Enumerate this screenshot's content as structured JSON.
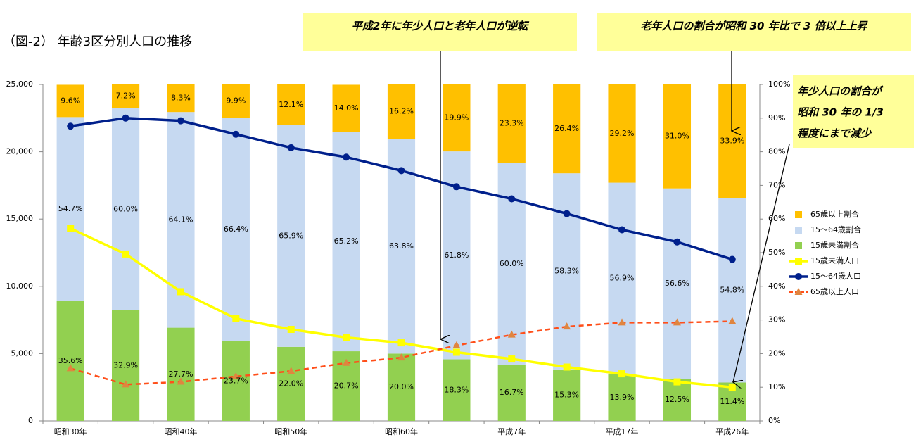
{
  "chart_data": {
    "type": "bar",
    "title": "（図-2） 年齢3区分別人口の推移",
    "stacked": true,
    "categories": [
      "昭和30年",
      null,
      "昭和40年",
      null,
      "昭和50年",
      null,
      "昭和60年",
      null,
      "平成7年",
      null,
      "平成17年",
      null,
      "平成26年"
    ],
    "series": [
      {
        "name": "65歳以上割合",
        "type": "bar",
        "axis": "y2",
        "color": "#ffc000",
        "values": [
          9.6,
          7.2,
          8.3,
          9.9,
          12.1,
          14.0,
          16.2,
          19.9,
          23.3,
          26.4,
          29.2,
          31.0,
          33.9
        ],
        "value_labels": [
          "9.6%",
          "7.2%",
          "8.3%",
          "9.9%",
          "12.1%",
          "14.0%",
          "16.2%",
          "19.9%",
          "23.3%",
          "26.4%",
          "29.2%",
          "31.0%",
          "33.9%"
        ]
      },
      {
        "name": "15～64歳割合",
        "type": "bar",
        "axis": "y2",
        "color": "#c6d9f1",
        "values": [
          54.7,
          60.0,
          64.1,
          66.4,
          65.9,
          65.2,
          63.8,
          61.8,
          60.0,
          58.3,
          56.9,
          56.6,
          54.8
        ],
        "value_labels": [
          "54.7%",
          "60.0%",
          "64.1%",
          "66.4%",
          "65.9%",
          "65.2%",
          "63.8%",
          "61.8%",
          "60.0%",
          "58.3%",
          "56.9%",
          "56.6%",
          "54.8%"
        ]
      },
      {
        "name": "15歳未満割合",
        "type": "bar",
        "axis": "y2",
        "color": "#92d050",
        "values": [
          35.6,
          32.9,
          27.7,
          23.7,
          22.0,
          20.7,
          20.0,
          18.3,
          16.7,
          15.3,
          13.9,
          12.5,
          11.4
        ],
        "value_labels": [
          "35.6%",
          "32.9%",
          "27.7%",
          "23.7%",
          "22.0%",
          "20.7%",
          "20.0%",
          "18.3%",
          "16.7%",
          "15.3%",
          "13.9%",
          "12.5%",
          "11.4%"
        ]
      },
      {
        "name": "15歳未満人口",
        "type": "line",
        "color": "#ffff00",
        "marker": "square",
        "dashed": false,
        "values": [
          14300,
          12400,
          9600,
          7600,
          6800,
          6200,
          5800,
          5100,
          4600,
          4000,
          3500,
          2900,
          2500
        ]
      },
      {
        "name": "15～64歳人口",
        "type": "line",
        "color": "#00208c",
        "marker": "circle",
        "dashed": false,
        "values": [
          21900,
          22500,
          22300,
          21300,
          20300,
          19600,
          18600,
          17400,
          16500,
          15400,
          14200,
          13300,
          12000
        ]
      },
      {
        "name": "65歳以上人口",
        "type": "line",
        "color": "#ff4f1a",
        "marker": "triangle",
        "marker_color": "#e0853f",
        "dashed": true,
        "values": [
          3900,
          2700,
          2900,
          3300,
          3700,
          4300,
          4700,
          5600,
          6400,
          7000,
          7300,
          7300,
          7400
        ]
      }
    ],
    "ylim": [
      0,
      25000
    ],
    "yticks": [
      0,
      {
        "value": 5000,
        "label": "5,000"
      },
      {
        "value": 10000,
        "label": "10,000"
      },
      {
        "value": 15000,
        "label": "15,000"
      },
      {
        "value": 20000,
        "label": "20,000"
      },
      {
        "value": 25000,
        "label": "25,000"
      }
    ],
    "y2lim": [
      0,
      100
    ],
    "y2ticks": [
      {
        "value": 0,
        "label": "0%"
      },
      {
        "value": 10,
        "label": "10%"
      },
      {
        "value": 20,
        "label": "20%"
      },
      {
        "value": 30,
        "label": "30%"
      },
      {
        "value": 40,
        "label": "40%"
      },
      {
        "value": 50,
        "label": "50%"
      },
      {
        "value": 60,
        "label": "60%"
      },
      {
        "value": 70,
        "label": "70%"
      },
      {
        "value": 80,
        "label": "80%"
      },
      {
        "value": 90,
        "label": "90%"
      },
      {
        "value": 100,
        "label": "100%"
      }
    ],
    "grid": false,
    "legend": "right",
    "annotations": [
      {
        "lines": [
          "平成2年に年少人口と老年人口が逆転"
        ]
      },
      {
        "lines": [
          "老年人口の割合が昭和 30 年比で 3 倍以上上昇"
        ]
      },
      {
        "lines": [
          "年少人口の割合が",
          "昭和 30 年の 1/3",
          "程度にまで減少"
        ]
      }
    ]
  }
}
